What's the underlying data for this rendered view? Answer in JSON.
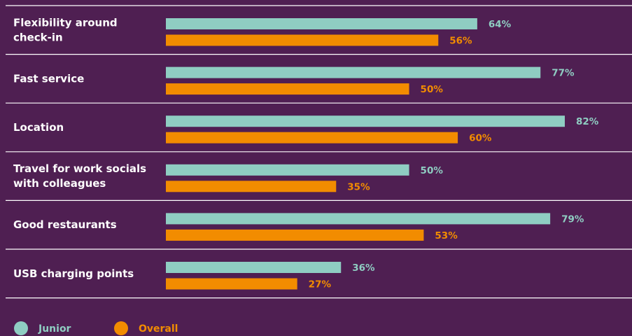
{
  "chart_data": {
    "type": "bar",
    "orientation": "horizontal",
    "categories": [
      [
        "Flexibility around",
        "check-in"
      ],
      [
        "Fast service"
      ],
      [
        "Location"
      ],
      [
        "Travel for work socials",
        "with colleagues"
      ],
      [
        "Good restaurants"
      ],
      [
        "USB charging points"
      ]
    ],
    "series": [
      {
        "name": "Junior",
        "values": [
          64,
          77,
          82,
          50,
          79,
          36
        ],
        "color": "#8fcdc2"
      },
      {
        "name": "Overall",
        "values": [
          56,
          50,
          60,
          35,
          53,
          27
        ],
        "color": "#f28c00"
      }
    ],
    "value_suffix": "%",
    "xlim": [
      0,
      100
    ],
    "title": "",
    "xlabel": "",
    "ylabel": "",
    "grid": false,
    "legend_position": "bottom-left",
    "colors": {
      "background": "#4f1f52",
      "separator": "#ffffff",
      "category_text": "#ffffff"
    }
  }
}
